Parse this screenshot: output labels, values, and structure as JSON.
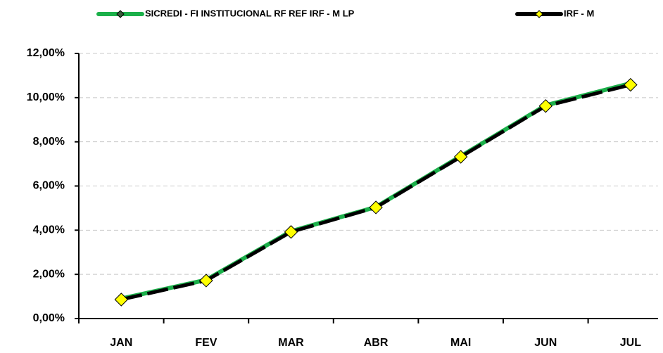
{
  "chart_data": {
    "type": "line",
    "categories": [
      "JAN",
      "FEV",
      "MAR",
      "ABR",
      "MAI",
      "JUN",
      "JUL"
    ],
    "series": [
      {
        "name": "SICREDI - FI INSTITUCIONAL RF REF IRF - M LP",
        "color": "#1bb04a",
        "marker_color": "#3a5a3a",
        "values": [
          0.9,
          1.75,
          3.95,
          5.05,
          7.35,
          9.65,
          10.65
        ]
      },
      {
        "name": "IRF - M",
        "color": "#000000",
        "marker_color": "#ffff00",
        "values": [
          0.86,
          1.72,
          3.92,
          5.03,
          7.32,
          9.62,
          10.58
        ]
      }
    ],
    "ylim": [
      0,
      12
    ],
    "yticks": [
      {
        "value": 0,
        "label": "0,00%"
      },
      {
        "value": 2,
        "label": "2,00%"
      },
      {
        "value": 4,
        "label": "4,00%"
      },
      {
        "value": 6,
        "label": "6,00%"
      },
      {
        "value": 8,
        "label": "8,00%"
      },
      {
        "value": 10,
        "label": "10,00%"
      },
      {
        "value": 12,
        "label": "12,00%"
      }
    ],
    "grid": true
  }
}
